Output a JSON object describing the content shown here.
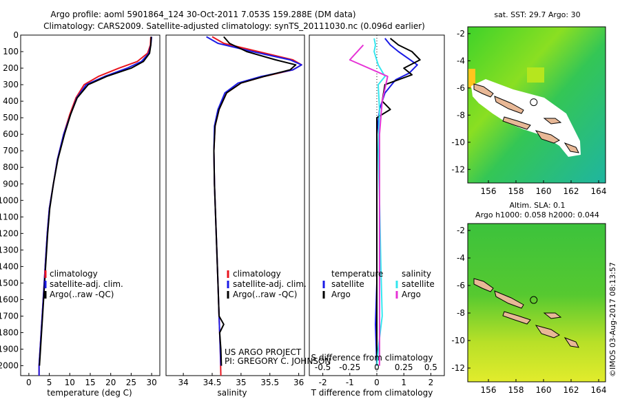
{
  "header": {
    "line1": "Argo profile: aoml 5901864_124 30-Oct-2011 7.053S 159.288E (DM data)",
    "line2": "Climatology: CARS2009. Satellite-adjusted climatology: synTS_20111030.nc (0.096d earlier)"
  },
  "colors": {
    "climatology": "#e8141e",
    "satellite": "#1a1ae6",
    "argo": "#000000",
    "salinity_sat": "#33e6ee",
    "salinity_argo": "#e633d6"
  },
  "panels": {
    "temperature": {
      "xlabel": "temperature (deg C)"
    },
    "salinity": {
      "xlabel": "salinity"
    },
    "difference": {
      "xlabel1": "S difference from climatology",
      "xlabel2": "T difference from climatology"
    }
  },
  "legend1": {
    "clim": "climatology",
    "sat": "satellite-adj. clim.",
    "argo": "Argo(..raw -QC)"
  },
  "legend2": {
    "clim": "climatology",
    "sat": "satellite-adj. clim.",
    "argo": "Argo(..raw -QC)"
  },
  "legend3": {
    "thead": "temperature",
    "shead": "salinity",
    "tsat": "satellite",
    "targo": "Argo",
    "ssat": "satellite",
    "sargo": "Argo"
  },
  "credit": {
    "line1": "US ARGO PROJECT",
    "line2": "PI: GREGORY C. JOHNSON"
  },
  "maps": {
    "sst_title": "sat. SST: 29.7 Argo: 30",
    "sla_title1": "Altim. SLA: 0.1",
    "sla_title2": "Argo h1000: 0.058 h2000: 0.044"
  },
  "side_stamp": "©IMOS 03-Aug-2017 08:13:57",
  "chart_data": [
    {
      "type": "line",
      "id": "temperature_profile",
      "xlabel": "temperature (deg C)",
      "ylabel": "depth",
      "xlim": [
        -2,
        32
      ],
      "ylim": [
        2060,
        0
      ],
      "yreversed": true,
      "xticks": [
        0,
        5,
        10,
        15,
        20,
        25,
        30
      ],
      "yticks": [
        0,
        100,
        200,
        300,
        400,
        500,
        600,
        700,
        800,
        900,
        1000,
        1100,
        1200,
        1300,
        1400,
        1500,
        1600,
        1700,
        1800,
        1900,
        2000
      ],
      "series": [
        {
          "name": "climatology",
          "color": "#e8141e",
          "points": [
            [
              29.8,
              10
            ],
            [
              29.7,
              60
            ],
            [
              29.0,
              110
            ],
            [
              26.5,
              160
            ],
            [
              22.0,
              200
            ],
            [
              17.0,
              250
            ],
            [
              13.5,
              300
            ],
            [
              11.5,
              380
            ],
            [
              10.0,
              480
            ],
            [
              8.5,
              600
            ],
            [
              7.0,
              750
            ],
            [
              6.0,
              900
            ],
            [
              5.0,
              1050
            ],
            [
              4.5,
              1200
            ],
            [
              4.0,
              1400
            ],
            [
              3.5,
              1600
            ],
            [
              3.0,
              1800
            ],
            [
              2.5,
              2000
            ],
            [
              2.5,
              2060
            ]
          ]
        },
        {
          "name": "satellite-adj. clim.",
          "color": "#1a1ae6",
          "points": [
            [
              30.0,
              10
            ],
            [
              29.8,
              60
            ],
            [
              29.3,
              110
            ],
            [
              27.5,
              160
            ],
            [
              24.0,
              200
            ],
            [
              18.5,
              250
            ],
            [
              14.0,
              300
            ],
            [
              11.7,
              380
            ],
            [
              10.2,
              480
            ],
            [
              8.5,
              600
            ],
            [
              7.0,
              750
            ],
            [
              6.0,
              900
            ],
            [
              5.0,
              1050
            ],
            [
              4.5,
              1200
            ],
            [
              4.0,
              1400
            ],
            [
              3.5,
              1600
            ],
            [
              3.0,
              1800
            ],
            [
              2.5,
              2000
            ],
            [
              2.5,
              2060
            ]
          ]
        },
        {
          "name": "Argo(..raw -QC)",
          "color": "#000000",
          "points": [
            [
              29.9,
              10
            ],
            [
              29.8,
              60
            ],
            [
              29.5,
              110
            ],
            [
              28.0,
              160
            ],
            [
              25.0,
              200
            ],
            [
              19.0,
              250
            ],
            [
              14.5,
              300
            ],
            [
              11.8,
              380
            ],
            [
              10.2,
              480
            ],
            [
              8.7,
              600
            ],
            [
              7.1,
              750
            ],
            [
              6.0,
              900
            ],
            [
              5.1,
              1050
            ],
            [
              4.6,
              1200
            ],
            [
              4.1,
              1400
            ],
            [
              3.6,
              1600
            ],
            [
              3.1,
              1800
            ],
            [
              2.6,
              2000
            ]
          ]
        }
      ]
    },
    {
      "type": "line",
      "id": "salinity_profile",
      "xlabel": "salinity",
      "ylabel": "depth",
      "xlim": [
        33.7,
        36.1
      ],
      "ylim": [
        2060,
        0
      ],
      "yreversed": true,
      "xticks": [
        34,
        34.5,
        35,
        35.5,
        36
      ],
      "series": [
        {
          "name": "climatology",
          "color": "#e8141e",
          "points": [
            [
              34.5,
              10
            ],
            [
              34.7,
              50
            ],
            [
              35.3,
              100
            ],
            [
              35.9,
              150
            ],
            [
              36.05,
              180
            ],
            [
              35.9,
              210
            ],
            [
              35.4,
              250
            ],
            [
              35.0,
              290
            ],
            [
              34.75,
              350
            ],
            [
              34.62,
              450
            ],
            [
              34.55,
              550
            ],
            [
              34.53,
              700
            ],
            [
              34.54,
              900
            ],
            [
              34.56,
              1100
            ],
            [
              34.58,
              1300
            ],
            [
              34.6,
              1500
            ],
            [
              34.62,
              1700
            ],
            [
              34.64,
              1900
            ],
            [
              34.65,
              2060
            ]
          ]
        },
        {
          "name": "satellite-adj. clim.",
          "color": "#1a1ae6",
          "points": [
            [
              34.4,
              10
            ],
            [
              34.6,
              50
            ],
            [
              35.2,
              100
            ],
            [
              35.85,
              150
            ],
            [
              36.05,
              180
            ],
            [
              35.9,
              210
            ],
            [
              35.35,
              250
            ],
            [
              34.95,
              290
            ],
            [
              34.72,
              350
            ],
            [
              34.6,
              450
            ],
            [
              34.54,
              550
            ],
            [
              34.53,
              700
            ],
            [
              34.54,
              900
            ],
            [
              34.56,
              1100
            ],
            [
              34.58,
              1300
            ],
            [
              34.6,
              1500
            ],
            [
              34.62,
              1700
            ],
            [
              34.64,
              1900
            ],
            [
              34.65,
              2000
            ]
          ]
        },
        {
          "name": "Argo(..raw -QC)",
          "color": "#000000",
          "points": [
            [
              34.7,
              10
            ],
            [
              34.8,
              50
            ],
            [
              35.1,
              100
            ],
            [
              35.6,
              150
            ],
            [
              35.95,
              180
            ],
            [
              35.85,
              210
            ],
            [
              35.4,
              250
            ],
            [
              35.0,
              290
            ],
            [
              34.75,
              350
            ],
            [
              34.62,
              450
            ],
            [
              34.55,
              550
            ],
            [
              34.53,
              700
            ],
            [
              34.54,
              900
            ],
            [
              34.56,
              1100
            ],
            [
              34.58,
              1300
            ],
            [
              34.6,
              1500
            ],
            [
              34.62,
              1700
            ],
            [
              34.7,
              1750
            ],
            [
              34.63,
              1800
            ],
            [
              34.65,
              1900
            ],
            [
              34.66,
              2000
            ]
          ]
        }
      ]
    },
    {
      "type": "line",
      "id": "difference_profile",
      "xlabel": "T difference from climatology",
      "xlabel_top": "S difference from climatology",
      "xlim": [
        -2.5,
        2.5
      ],
      "ylim": [
        2060,
        0
      ],
      "yreversed": true,
      "xticks": [
        -2,
        -1,
        0,
        1,
        2
      ],
      "xticks_salinity": [
        -0.5,
        -0.25,
        0,
        0.25,
        0.5
      ],
      "series": [
        {
          "name": "temperature satellite",
          "color": "#1a1ae6",
          "points": [
            [
              0.3,
              20
            ],
            [
              0.5,
              60
            ],
            [
              0.8,
              100
            ],
            [
              1.5,
              180
            ],
            [
              1.2,
              230
            ],
            [
              0.7,
              270
            ],
            [
              0.3,
              350
            ],
            [
              0.1,
              450
            ],
            [
              0.0,
              600
            ],
            [
              0.0,
              1000
            ],
            [
              0.0,
              1500
            ],
            [
              -0.05,
              1750
            ],
            [
              0.0,
              2000
            ]
          ]
        },
        {
          "name": "temperature Argo",
          "color": "#000000",
          "points": [
            [
              0.5,
              20
            ],
            [
              0.8,
              60
            ],
            [
              1.3,
              100
            ],
            [
              1.6,
              150
            ],
            [
              1.0,
              200
            ],
            [
              1.3,
              240
            ],
            [
              0.3,
              300
            ],
            [
              0.2,
              400
            ],
            [
              0.5,
              450
            ],
            [
              0.0,
              500
            ],
            [
              0.0,
              800
            ],
            [
              0.0,
              1200
            ],
            [
              0.0,
              1700
            ],
            [
              0.0,
              2000
            ]
          ]
        },
        {
          "name": "salinity satellite",
          "color": "#33e6ee",
          "points": [
            [
              -0.1,
              20
            ],
            [
              -0.05,
              60
            ],
            [
              -0.1,
              100
            ],
            [
              0.05,
              180
            ],
            [
              0.3,
              250
            ],
            [
              0.05,
              300
            ],
            [
              0.1,
              450
            ],
            [
              0.05,
              700
            ],
            [
              0.1,
              1000
            ],
            [
              0.15,
              1400
            ],
            [
              0.2,
              1700
            ],
            [
              0.05,
              1900
            ],
            [
              0.0,
              2000
            ]
          ]
        },
        {
          "name": "salinity Argo",
          "color": "#e633d6",
          "points": [
            [
              -0.5,
              60
            ],
            [
              -1.0,
              150
            ],
            [
              0.4,
              250
            ],
            [
              0.2,
              400
            ],
            [
              0.1,
              600
            ],
            [
              0.1,
              1000
            ],
            [
              0.1,
              1500
            ],
            [
              0.1,
              1800
            ],
            [
              0.1,
              2000
            ]
          ]
        }
      ]
    },
    {
      "type": "heatmap",
      "id": "sst_map",
      "title": "sat. SST: 29.7 Argo: 30",
      "xlim": [
        154.5,
        164.5
      ],
      "ylim": [
        -13,
        -1.5
      ],
      "xticks": [
        156,
        158,
        160,
        162,
        164
      ],
      "yticks": [
        -2,
        -4,
        -6,
        -8,
        -10,
        -12
      ],
      "profile_location": [
        159.288,
        -7.053
      ]
    },
    {
      "type": "heatmap",
      "id": "sla_map",
      "title": "Altim. SLA: 0.1",
      "subtitle": "Argo h1000: 0.058 h2000: 0.044",
      "xlim": [
        154.5,
        164.5
      ],
      "ylim": [
        -13,
        -1.5
      ],
      "xticks": [
        156,
        158,
        160,
        162,
        164
      ],
      "yticks": [
        -2,
        -4,
        -6,
        -8,
        -10,
        -12
      ],
      "profile_location": [
        159.288,
        -7.053
      ]
    }
  ]
}
